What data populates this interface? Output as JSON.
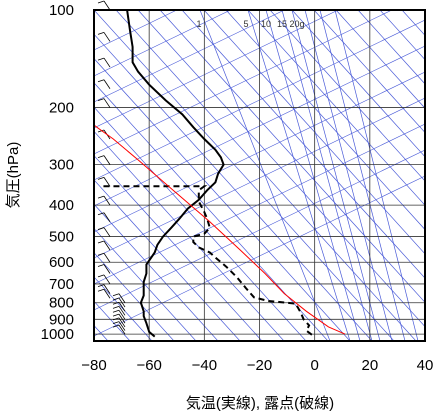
{
  "chart_data": {
    "type": "line",
    "title": "",
    "xlabel": "気温(実線), 露点(破線)",
    "ylabel": "気圧(hPa)",
    "xlim": [
      -80,
      40
    ],
    "ylim": [
      1050,
      100
    ],
    "y_scale": "log",
    "x_ticks": [
      -80,
      -60,
      -40,
      -20,
      0,
      20,
      40
    ],
    "y_ticks": [
      100,
      200,
      300,
      400,
      500,
      600,
      700,
      800,
      900,
      1000
    ],
    "mixing_ratio_labels": [
      "1",
      "5",
      "10",
      "15",
      "20g"
    ],
    "grid": true,
    "series": [
      {
        "style": "solid",
        "color": "#000000",
        "points": [
          [
            -58,
            1018
          ],
          [
            -60,
            984
          ],
          [
            -61,
            925
          ],
          [
            -62,
            880
          ],
          [
            -62,
            850
          ],
          [
            -63,
            800
          ],
          [
            -62,
            760
          ],
          [
            -62,
            720
          ],
          [
            -62,
            690
          ],
          [
            -61,
            650
          ],
          [
            -61,
            610
          ],
          [
            -58,
            560
          ],
          [
            -57,
            530
          ],
          [
            -55,
            500
          ],
          [
            -52,
            470
          ],
          [
            -49,
            440
          ],
          [
            -46,
            410
          ],
          [
            -42,
            385
          ],
          [
            -39,
            360
          ],
          [
            -36,
            340
          ],
          [
            -35,
            320
          ],
          [
            -33,
            300
          ],
          [
            -34,
            285
          ],
          [
            -36,
            270
          ],
          [
            -40,
            250
          ],
          [
            -44,
            230
          ],
          [
            -48,
            210
          ],
          [
            -54,
            190
          ],
          [
            -60,
            170
          ],
          [
            -64,
            155
          ],
          [
            -66,
            145
          ],
          [
            -66,
            130
          ],
          [
            -67,
            115
          ],
          [
            -68,
            100
          ]
        ]
      },
      {
        "style": "dashed",
        "color": "#000000",
        "points": [
          [
            -1,
            1005
          ],
          [
            -3,
            975
          ],
          [
            -2,
            940
          ],
          [
            -4,
            900
          ],
          [
            -5,
            860
          ],
          [
            -6,
            830
          ],
          [
            -7,
            805
          ],
          [
            -17,
            790
          ],
          [
            -22,
            770
          ],
          [
            -25,
            720
          ],
          [
            -28,
            670
          ],
          [
            -32,
            620
          ],
          [
            -36,
            580
          ],
          [
            -38,
            560
          ],
          [
            -42,
            540
          ],
          [
            -44,
            520
          ],
          [
            -44,
            500
          ],
          [
            -40,
            490
          ],
          [
            -38,
            470
          ],
          [
            -39,
            440
          ],
          [
            -40,
            420
          ],
          [
            -42,
            390
          ],
          [
            -42,
            360
          ],
          [
            -40,
            350
          ],
          [
            -70,
            350
          ],
          [
            -76,
            350
          ],
          [
            -78,
            350
          ]
        ]
      },
      {
        "style": "solid",
        "color": "#ff0000",
        "points": [
          [
            11,
            1000
          ],
          [
            5,
            950
          ],
          [
            -3,
            850
          ],
          [
            -11,
            750
          ],
          [
            -18,
            650
          ],
          [
            -27,
            550
          ],
          [
            -38,
            450
          ],
          [
            -53,
            350
          ],
          [
            -64,
            290
          ],
          [
            -73,
            250
          ],
          [
            -79,
            230
          ],
          [
            -85,
            210
          ]
        ]
      }
    ]
  },
  "axis": {
    "y_label": "気圧(hPa)",
    "x_label": "気温(実線), 露点(破線)"
  }
}
